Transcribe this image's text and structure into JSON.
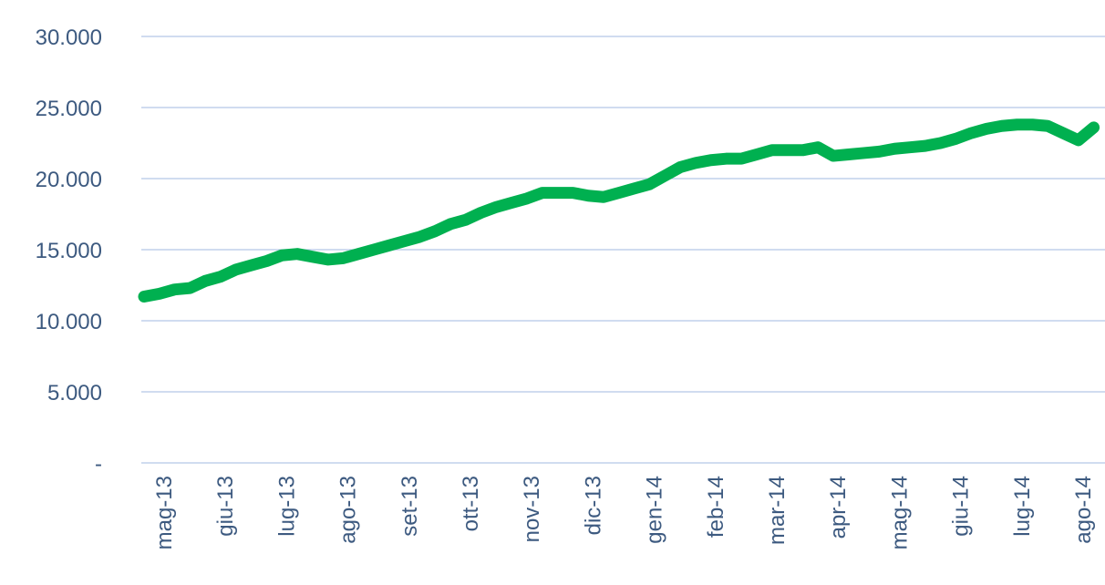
{
  "chart_data": {
    "type": "line",
    "categories": [
      "mag-13",
      null,
      null,
      null,
      "giu-13",
      null,
      null,
      null,
      "lug-13",
      null,
      null,
      null,
      "ago-13",
      null,
      null,
      null,
      "set-13",
      null,
      null,
      null,
      "ott-13",
      null,
      null,
      null,
      "nov-13",
      null,
      null,
      null,
      "dic-13",
      null,
      null,
      null,
      "gen-14",
      null,
      null,
      null,
      "feb-14",
      null,
      null,
      null,
      "mar-14",
      null,
      null,
      null,
      "apr-14",
      null,
      null,
      null,
      "mag-14",
      null,
      null,
      null,
      "giu-14",
      null,
      null,
      null,
      "lug-14",
      null,
      null,
      null,
      "ago-14",
      null,
      null
    ],
    "series": [
      {
        "color": "#00b050",
        "values": [
          11700,
          11900,
          12200,
          12300,
          12800,
          13100,
          13600,
          13900,
          14200,
          14600,
          14700,
          14500,
          14300,
          14400,
          14700,
          15000,
          15300,
          15600,
          15900,
          16300,
          16800,
          17100,
          17600,
          18000,
          18300,
          18600,
          19000,
          19000,
          19000,
          18800,
          18700,
          19000,
          19300,
          19600,
          20200,
          20800,
          21100,
          21300,
          21400,
          21400,
          21700,
          22000,
          22000,
          22000,
          22200,
          21600,
          21700,
          21800,
          21900,
          22100,
          22200,
          22300,
          22500,
          22800,
          23200,
          23500,
          23700,
          23800,
          23800,
          23700,
          23200,
          22700,
          23600
        ]
      }
    ],
    "ylim": [
      0,
      30000
    ],
    "yticks": [
      {
        "value": 0,
        "label": "-"
      },
      {
        "value": 5000,
        "label": "5.000"
      },
      {
        "value": 10000,
        "label": "10.000"
      },
      {
        "value": 15000,
        "label": "15.000"
      },
      {
        "value": 20000,
        "label": "20.000"
      },
      {
        "value": 25000,
        "label": "25.000"
      },
      {
        "value": 30000,
        "label": "30.000"
      }
    ],
    "grid": true
  }
}
